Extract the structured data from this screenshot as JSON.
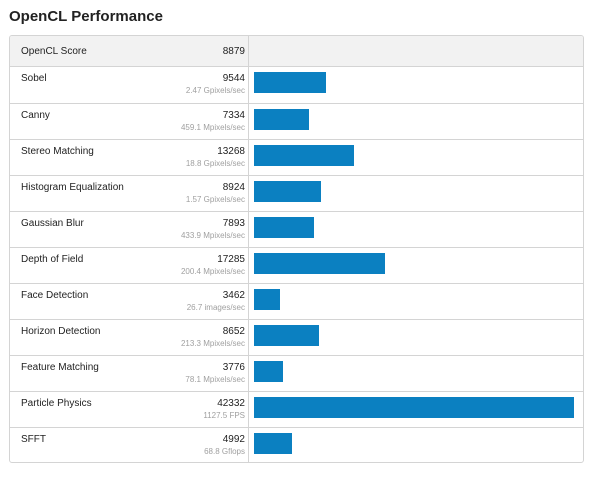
{
  "title": "OpenCL Performance",
  "score_label": "OpenCL Score",
  "score_value": "8879",
  "colors": {
    "bar": "#0b80c1",
    "border": "#d4d4d4",
    "header_bg": "#f2f2f2",
    "rate_text": "#a0a0a0"
  },
  "chart_data": {
    "type": "bar",
    "orientation": "horizontal",
    "categories": [
      "Sobel",
      "Canny",
      "Stereo Matching",
      "Histogram Equalization",
      "Gaussian Blur",
      "Depth of Field",
      "Face Detection",
      "Horizon Detection",
      "Feature Matching",
      "Particle Physics",
      "SFFT"
    ],
    "values": [
      9544,
      7334,
      13268,
      8924,
      7893,
      17285,
      3462,
      8652,
      3776,
      42332,
      4992
    ],
    "rates": [
      "2.47 Gpixels/sec",
      "459.1 Mpixels/sec",
      "18.8 Gpixels/sec",
      "1.57 Gpixels/sec",
      "433.9 Mpixels/sec",
      "200.4 Mpixels/sec",
      "26.7 images/sec",
      "213.3 Mpixels/sec",
      "78.1 Mpixels/sec",
      "1127.5 FPS",
      "68.8 Gflops"
    ],
    "title": "OpenCL Performance",
    "xlim": [
      0,
      42332
    ],
    "grid": false,
    "legend": "none"
  }
}
